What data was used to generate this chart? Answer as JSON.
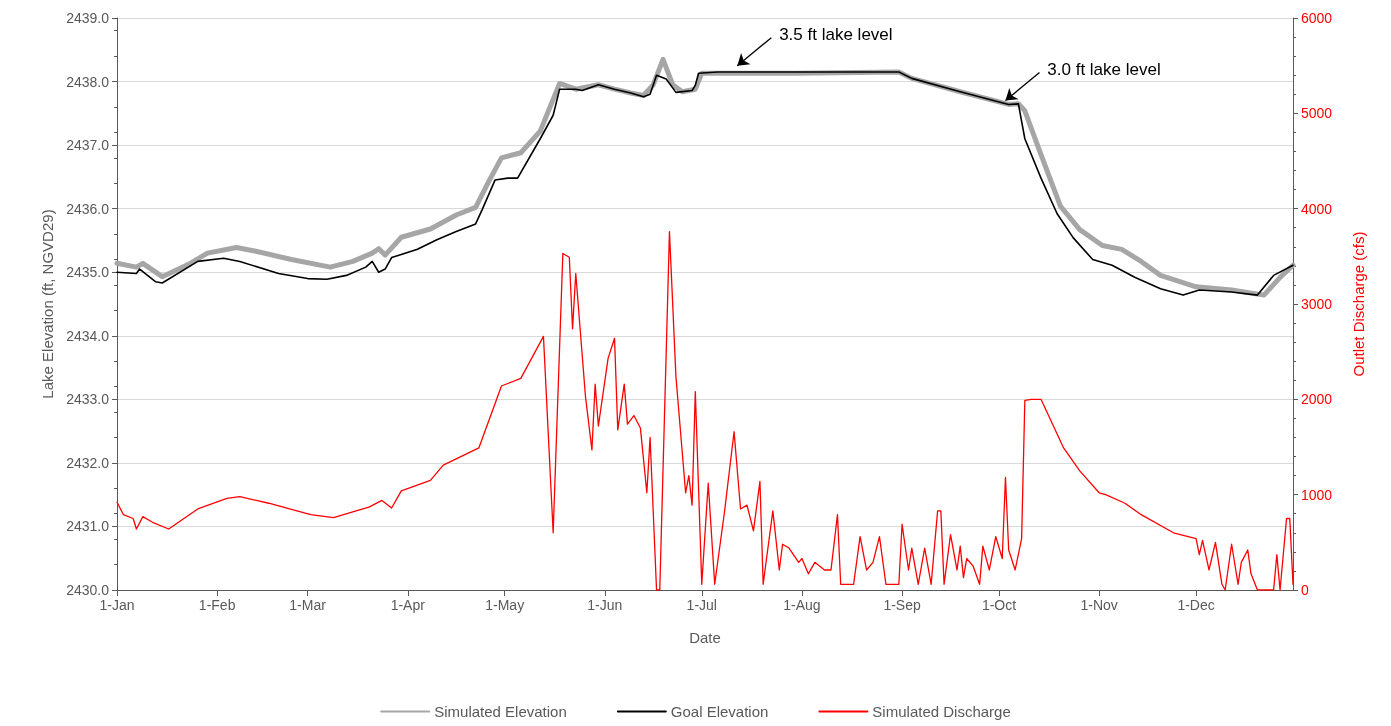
{
  "chart_data": {
    "type": "line",
    "xlabel": "Date",
    "ylabel": "Lake Elevation (ft, NGVD29)",
    "y2label": "Outlet Discharge (cfs)",
    "xlim": [
      "--01-01",
      "--12-31"
    ],
    "xticks": [
      {
        "value": "--01-01",
        "label": "1-Jan"
      },
      {
        "value": "--02-01",
        "label": "1-Feb"
      },
      {
        "value": "--03-01",
        "label": "1-Mar"
      },
      {
        "value": "--04-01",
        "label": "1-Apr"
      },
      {
        "value": "--05-01",
        "label": "1-May"
      },
      {
        "value": "--06-01",
        "label": "1-Jun"
      },
      {
        "value": "--07-01",
        "label": "1-Jul"
      },
      {
        "value": "--08-01",
        "label": "1-Aug"
      },
      {
        "value": "--09-01",
        "label": "1-Sep"
      },
      {
        "value": "--10-01",
        "label": "1-Oct"
      },
      {
        "value": "--11-01",
        "label": "1-Nov"
      },
      {
        "value": "--12-01",
        "label": "1-Dec"
      }
    ],
    "ylim": [
      2430,
      2439
    ],
    "yticks": [
      {
        "value": 2430,
        "label": "2430.0"
      },
      {
        "value": 2431,
        "label": "2431.0"
      },
      {
        "value": 2432,
        "label": "2432.0"
      },
      {
        "value": 2433,
        "label": "2433.0"
      },
      {
        "value": 2434,
        "label": "2434.0"
      },
      {
        "value": 2435,
        "label": "2435.0"
      },
      {
        "value": 2436,
        "label": "2436.0"
      },
      {
        "value": 2437,
        "label": "2437.0"
      },
      {
        "value": 2438,
        "label": "2438.0"
      },
      {
        "value": 2439,
        "label": "2439.0"
      }
    ],
    "y2lim": [
      0,
      6000
    ],
    "y2ticks": [
      0,
      1000,
      2000,
      3000,
      4000,
      5000,
      6000
    ],
    "grid": "y",
    "legend": "bottom",
    "marker": "none",
    "annotations": [
      {
        "text": "3.5 ft lake level",
        "x": "--07-12",
        "y": 2438.25
      },
      {
        "text": "3.0 ft lake level",
        "x": "--10-03",
        "y": 2437.7
      }
    ],
    "series": [
      {
        "name": "Simulated Elevation",
        "color": "#a6a6a6",
        "x": [
          "--01-01",
          "--01-07",
          "--01-09",
          "--01-15",
          "--01-23",
          "--01-29",
          "--02-07",
          "--02-13",
          "--02-24",
          "--03-08",
          "--03-15",
          "--03-21",
          "--03-23",
          "--03-25",
          "--03-30",
          "--04-08",
          "--04-16",
          "--04-22",
          "--04-26",
          "--04-30",
          "--05-06",
          "--05-12",
          "--05-18",
          "--05-23",
          "--05-30",
          "--06-04",
          "--06-09",
          "--06-13",
          "--06-16",
          "--06-19",
          "--06-22",
          "--06-25",
          "--06-29",
          "--07-01",
          "--07-30",
          "--08-31",
          "--09-04",
          "--09-19",
          "--10-04",
          "--10-07",
          "--10-09",
          "--10-14",
          "--10-20",
          "--10-26",
          "--11-02",
          "--11-08",
          "--11-14",
          "--11-20",
          "--12-01",
          "--12-12",
          "--12-22",
          "--12-27",
          "--12-31"
        ],
        "values": [
          2435.14,
          2435.08,
          2435.14,
          2434.93,
          2435.12,
          2435.3,
          2435.39,
          2435.33,
          2435.2,
          2435.08,
          2435.17,
          2435.3,
          2435.37,
          2435.27,
          2435.55,
          2435.68,
          2435.9,
          2436.02,
          2436.42,
          2436.8,
          2436.88,
          2437.22,
          2437.97,
          2437.88,
          2437.95,
          2437.88,
          2437.82,
          2437.78,
          2437.95,
          2438.35,
          2437.95,
          2437.84,
          2437.88,
          2438.13,
          2438.13,
          2438.15,
          2438.05,
          2437.84,
          2437.64,
          2437.65,
          2437.54,
          2436.85,
          2436.04,
          2435.67,
          2435.42,
          2435.36,
          2435.17,
          2434.95,
          2434.77,
          2434.72,
          2434.64,
          2434.92,
          2435.11
        ]
      },
      {
        "name": "Goal Elevation",
        "color": "#000000",
        "x": [
          "--01-01",
          "--01-07",
          "--01-08",
          "--01-13",
          "--01-15",
          "--01-26",
          "--02-03",
          "--02-08",
          "--02-20",
          "--03-01",
          "--03-07",
          "--03-13",
          "--03-19",
          "--03-21",
          "--03-23",
          "--03-25",
          "--03-27",
          "--04-04",
          "--04-10",
          "--04-16",
          "--04-22",
          "--04-24",
          "--04-28",
          "--05-02",
          "--05-05",
          "--05-12",
          "--05-16",
          "--05-18",
          "--05-23",
          "--05-25",
          "--05-30",
          "--06-04",
          "--06-09",
          "--06-13",
          "--06-15",
          "--06-17",
          "--06-20",
          "--06-23",
          "--06-28",
          "--06-29",
          "--06-30",
          "--07-06",
          "--08-31",
          "--09-04",
          "--09-19",
          "--10-04",
          "--10-07",
          "--10-09",
          "--10-14",
          "--10-19",
          "--10-24",
          "--10-30",
          "--11-05",
          "--11-12",
          "--11-20",
          "--11-27",
          "--12-02",
          "--12-12",
          "--12-20",
          "--12-25",
          "--12-31"
        ],
        "values": [
          2435.0,
          2434.98,
          2435.05,
          2434.85,
          2434.83,
          2435.17,
          2435.22,
          2435.17,
          2434.98,
          2434.9,
          2434.89,
          2434.95,
          2435.08,
          2435.17,
          2435.0,
          2435.05,
          2435.23,
          2435.36,
          2435.51,
          2435.64,
          2435.76,
          2435.98,
          2436.45,
          2436.48,
          2436.48,
          2437.1,
          2437.47,
          2437.88,
          2437.88,
          2437.86,
          2437.95,
          2437.88,
          2437.82,
          2437.76,
          2437.8,
          2438.1,
          2438.04,
          2437.83,
          2437.86,
          2437.94,
          2438.13,
          2438.15,
          2438.15,
          2438.05,
          2437.84,
          2437.64,
          2437.65,
          2437.1,
          2436.48,
          2435.92,
          2435.54,
          2435.2,
          2435.11,
          2434.92,
          2434.74,
          2434.64,
          2434.72,
          2434.69,
          2434.64,
          2434.95,
          2435.11
        ]
      },
      {
        "name": "Simulated Discharge",
        "color": "#ff0000",
        "axis": "y2",
        "x": [
          "--01-01",
          "--01-03",
          "--01-06",
          "--01-07",
          "--01-09",
          "--01-12",
          "--01-17",
          "--01-26",
          "--02-04",
          "--02-08",
          "--02-17",
          "--03-02",
          "--03-09",
          "--03-20",
          "--03-24",
          "--03-27",
          "--03-30",
          "--04-08",
          "--04-12",
          "--04-23",
          "--04-30",
          "--05-06",
          "--05-13",
          "--05-16",
          "--05-19",
          "--05-21",
          "--05-22",
          "--05-23",
          "--05-26",
          "--05-28",
          "--05-29",
          "--05-30",
          "--06-02",
          "--06-04",
          "--06-05",
          "--06-07",
          "--06-08",
          "--06-10",
          "--06-12",
          "--06-14",
          "--06-15",
          "--06-17",
          "--06-18",
          "--06-21",
          "--06-23",
          "--06-26",
          "--06-27",
          "--06-28",
          "--06-29",
          "--07-01",
          "--07-03",
          "--07-05",
          "--07-08",
          "--07-11",
          "--07-13",
          "--07-15",
          "--07-17",
          "--07-19",
          "--07-20",
          "--07-23",
          "--07-25",
          "--07-26",
          "--07-28",
          "--07-31",
          "--08-01",
          "--08-03",
          "--08-05",
          "--08-08",
          "--08-10",
          "--08-12",
          "--08-13",
          "--08-17",
          "--08-19",
          "--08-21",
          "--08-23",
          "--08-25",
          "--08-27",
          "--08-31",
          "--09-01",
          "--09-03",
          "--09-04",
          "--09-06",
          "--09-08",
          "--09-10",
          "--09-12",
          "--09-13",
          "--09-14",
          "--09-16",
          "--09-18",
          "--09-19",
          "--09-20",
          "--09-21",
          "--09-23",
          "--09-25",
          "--09-26",
          "--09-28",
          "--09-30",
          "--10-02",
          "--10-03",
          "--10-04",
          "--10-06",
          "--10-08",
          "--10-09",
          "--10-11",
          "--10-14",
          "--10-21",
          "--10-26",
          "--11-01",
          "--11-03",
          "--11-09",
          "--11-14",
          "--11-24",
          "--12-01",
          "--12-02",
          "--12-03",
          "--12-05",
          "--12-07",
          "--12-09",
          "--12-10",
          "--12-12",
          "--12-14",
          "--12-15",
          "--12-17",
          "--12-18",
          "--12-20",
          "--12-25",
          "--12-26",
          "--12-27",
          "--12-29",
          "--12-30",
          "--12-31"
        ],
        "values": [
          920,
          790,
          750,
          640,
          770,
          710,
          640,
          850,
          960,
          980,
          910,
          790,
          760,
          870,
          940,
          860,
          1040,
          1150,
          1310,
          1490,
          2140,
          2220,
          2660,
          600,
          3530,
          3490,
          2740,
          3320,
          2030,
          1470,
          2160,
          1720,
          2430,
          2640,
          1680,
          2160,
          1740,
          1830,
          1700,
          1020,
          1600,
          0,
          0,
          3760,
          2240,
          1020,
          1200,
          890,
          2080,
          60,
          1120,
          60,
          810,
          1660,
          850,
          890,
          620,
          1140,
          60,
          830,
          210,
          480,
          440,
          290,
          330,
          170,
          290,
          210,
          210,
          790,
          60,
          60,
          560,
          210,
          290,
          560,
          60,
          60,
          690,
          210,
          440,
          60,
          440,
          60,
          830,
          830,
          60,
          580,
          210,
          460,
          130,
          330,
          250,
          60,
          460,
          210,
          560,
          330,
          1180,
          420,
          210,
          540,
          1990,
          2000,
          2000,
          1490,
          1250,
          1020,
          1000,
          910,
          790,
          600,
          540,
          370,
          520,
          210,
          500,
          60,
          0,
          480,
          60,
          290,
          420,
          170,
          0,
          0,
          370,
          0,
          750,
          750,
          60
        ]
      }
    ]
  }
}
